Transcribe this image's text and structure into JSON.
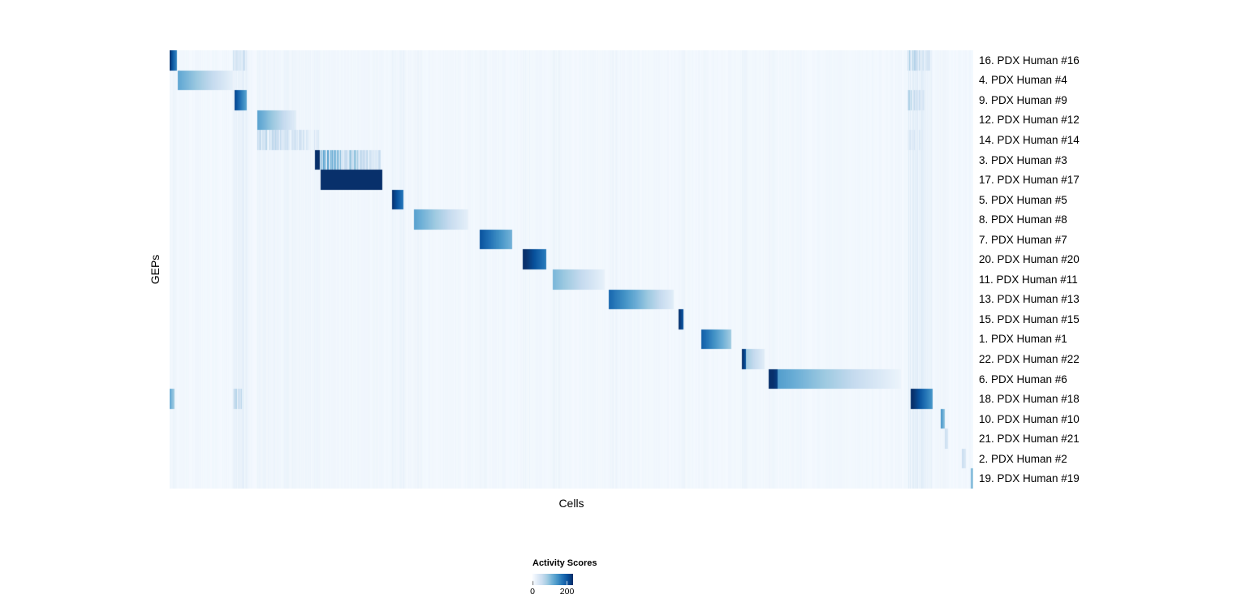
{
  "chart_data": {
    "type": "heatmap",
    "title": "",
    "xlabel": "Cells",
    "ylabel": "GEPs",
    "colormap": "Blues",
    "colormap_stops": [
      "#f7fbff",
      "#deebf7",
      "#c6dbef",
      "#9ecae1",
      "#6baed6",
      "#4292c6",
      "#2171b5",
      "#08519c",
      "#08306b"
    ],
    "value_range": [
      0,
      235
    ],
    "legend": {
      "title": "Activity Scores",
      "ticks": [
        {
          "value": 0,
          "label": "0"
        },
        {
          "value": 200,
          "label": "200"
        }
      ]
    },
    "background_value": 6,
    "column_bands": [
      {
        "x0": 0.0,
        "x1": 0.009,
        "v": 10
      },
      {
        "x0": 0.078,
        "x1": 0.097,
        "v": 20
      },
      {
        "x0": 0.109,
        "x1": 0.186,
        "v": 10
      },
      {
        "x0": 0.187,
        "x1": 0.266,
        "v": 7
      },
      {
        "x0": 0.276,
        "x1": 0.292,
        "v": 13
      },
      {
        "x0": 0.304,
        "x1": 0.314,
        "v": 10
      },
      {
        "x0": 0.385,
        "x1": 0.394,
        "v": 10
      },
      {
        "x0": 0.439,
        "x1": 0.448,
        "v": 10
      },
      {
        "x0": 0.476,
        "x1": 0.486,
        "v": 10
      },
      {
        "x0": 0.546,
        "x1": 0.558,
        "v": 10
      },
      {
        "x0": 0.633,
        "x1": 0.641,
        "v": 10
      },
      {
        "x0": 0.662,
        "x1": 0.67,
        "v": 8
      },
      {
        "x0": 0.712,
        "x1": 0.72,
        "v": 10
      },
      {
        "x0": 0.745,
        "x1": 0.754,
        "v": 10
      },
      {
        "x0": 0.918,
        "x1": 0.948,
        "v": 20
      },
      {
        "x0": 0.957,
        "x1": 0.965,
        "v": 8
      }
    ],
    "rows": [
      {
        "label": "16. PDX Human #16",
        "blocks": [
          {
            "x0": 0.0,
            "x1": 0.009,
            "v0": 230,
            "v1": 150
          },
          {
            "x0": 0.078,
            "x1": 0.095,
            "v0": 55,
            "v1": 35,
            "streaky": true
          },
          {
            "x0": 0.918,
            "x1": 0.946,
            "v0": 65,
            "v1": 35,
            "streaky": true
          }
        ]
      },
      {
        "label": "4. PDX Human #4",
        "blocks": [
          {
            "x0": 0.01,
            "x1": 0.078,
            "v0": 125,
            "v1": 20
          }
        ]
      },
      {
        "label": "9. PDX Human #9",
        "blocks": [
          {
            "x0": 0.08,
            "x1": 0.095,
            "v0": 220,
            "v1": 130
          },
          {
            "x0": 0.918,
            "x1": 0.94,
            "v0": 70,
            "v1": 35,
            "streaky": true
          }
        ]
      },
      {
        "label": "12. PDX Human #12",
        "blocks": [
          {
            "x0": 0.109,
            "x1": 0.157,
            "v0": 130,
            "v1": 25
          }
        ]
      },
      {
        "label": "14. PDX Human #14",
        "blocks": [
          {
            "x0": 0.109,
            "x1": 0.186,
            "v0": 60,
            "v1": 30,
            "streaky": true
          },
          {
            "x0": 0.918,
            "x1": 0.94,
            "v0": 40,
            "v1": 25,
            "streaky": true
          }
        ]
      },
      {
        "label": "3. PDX Human #3",
        "blocks": [
          {
            "x0": 0.18,
            "x1": 0.186,
            "v0": 250,
            "v1": 245
          },
          {
            "x0": 0.187,
            "x1": 0.262,
            "v0": 110,
            "v1": 50,
            "streaky": true
          }
        ]
      },
      {
        "label": "17. PDX Human #17",
        "blocks": [
          {
            "x0": 0.187,
            "x1": 0.264,
            "v0": 250,
            "v1": 235
          }
        ]
      },
      {
        "label": "5. PDX Human #5",
        "blocks": [
          {
            "x0": 0.276,
            "x1": 0.29,
            "v0": 235,
            "v1": 170
          }
        ]
      },
      {
        "label": "8. PDX Human #8",
        "blocks": [
          {
            "x0": 0.304,
            "x1": 0.371,
            "v0": 130,
            "v1": 20
          }
        ]
      },
      {
        "label": "7. PDX Human #7",
        "blocks": [
          {
            "x0": 0.385,
            "x1": 0.426,
            "v0": 205,
            "v1": 110
          }
        ]
      },
      {
        "label": "20. PDX Human #20",
        "blocks": [
          {
            "x0": 0.439,
            "x1": 0.468,
            "v0": 245,
            "v1": 165
          }
        ]
      },
      {
        "label": "11. PDX Human #11",
        "blocks": [
          {
            "x0": 0.476,
            "x1": 0.541,
            "v0": 110,
            "v1": 18
          }
        ]
      },
      {
        "label": "13. PDX Human #13",
        "blocks": [
          {
            "x0": 0.546,
            "x1": 0.627,
            "v0": 185,
            "v1": 25
          }
        ]
      },
      {
        "label": "15. PDX Human #15",
        "blocks": [
          {
            "x0": 0.633,
            "x1": 0.639,
            "v0": 235,
            "v1": 200
          }
        ]
      },
      {
        "label": "1. PDX Human #1",
        "blocks": [
          {
            "x0": 0.661,
            "x1": 0.698,
            "v0": 195,
            "v1": 85
          }
        ]
      },
      {
        "label": "22. PDX Human #22",
        "blocks": [
          {
            "x0": 0.712,
            "x1": 0.717,
            "v0": 235,
            "v1": 200
          },
          {
            "x0": 0.717,
            "x1": 0.74,
            "v0": 85,
            "v1": 25
          }
        ]
      },
      {
        "label": "6. PDX Human #6",
        "blocks": [
          {
            "x0": 0.745,
            "x1": 0.756,
            "v0": 250,
            "v1": 220
          },
          {
            "x0": 0.756,
            "x1": 0.91,
            "v0": 135,
            "v1": 12
          }
        ]
      },
      {
        "label": "18. PDX Human #18",
        "blocks": [
          {
            "x0": 0.0,
            "x1": 0.006,
            "v0": 120,
            "v1": 80
          },
          {
            "x0": 0.078,
            "x1": 0.092,
            "v0": 75,
            "v1": 45,
            "streaky": true
          },
          {
            "x0": 0.922,
            "x1": 0.949,
            "v0": 245,
            "v1": 140
          }
        ]
      },
      {
        "label": "10. PDX Human #10",
        "blocks": [
          {
            "x0": 0.959,
            "x1": 0.964,
            "v0": 150,
            "v1": 95
          }
        ]
      },
      {
        "label": "21. PDX Human #21",
        "blocks": [
          {
            "x0": 0.964,
            "x1": 0.968,
            "v0": 55,
            "v1": 35
          }
        ]
      },
      {
        "label": "2. PDX Human #2",
        "blocks": [
          {
            "x0": 0.985,
            "x1": 0.99,
            "v0": 55,
            "v1": 35
          }
        ]
      },
      {
        "label": "19. PDX Human #19",
        "blocks": [
          {
            "x0": 0.996,
            "x1": 1.0,
            "v0": 120,
            "v1": 75
          }
        ]
      }
    ]
  }
}
